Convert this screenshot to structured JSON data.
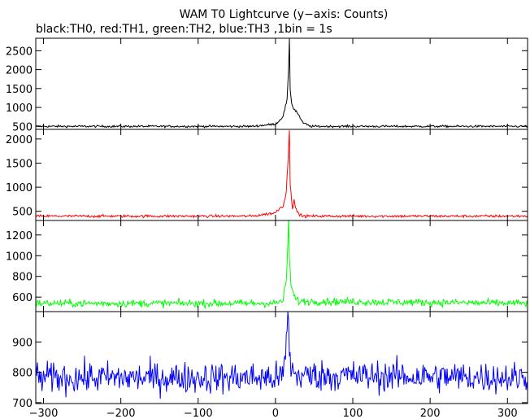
{
  "chart_data": {
    "type": "line",
    "title": "WAM T0 Lightcurve (y−axis: Counts)",
    "subtitle": "black:TH0, red:TH1, green:TH2, blue:TH3 ,1bin = 1s",
    "xlabel": "",
    "ylabel": "",
    "grid": false,
    "bin_seconds": 1,
    "xlim": [
      -310,
      326
    ],
    "x_ticks": [
      -300,
      -200,
      -100,
      0,
      100,
      200,
      300
    ],
    "x_tick_labels": [
      "−300",
      "−200",
      "−100",
      "0",
      "100",
      "200",
      "300"
    ],
    "panels": [
      {
        "series_name": "TH0",
        "color": "#000000",
        "ylim": [
          420,
          2830
        ],
        "y_ticks": [
          500,
          1000,
          1500,
          2000,
          2500
        ],
        "y_tick_labels": [
          "500",
          "1000",
          "1500",
          "2000",
          "2500"
        ],
        "profile": {
          "baseline": 500,
          "noise": 14,
          "x": [
            -310,
            -30,
            0,
            5,
            10,
            15,
            17,
            18,
            19,
            21,
            24,
            27,
            30,
            35,
            45,
            326
          ],
          "y": [
            500,
            500,
            560,
            650,
            780,
            1200,
            2000,
            2800,
            1500,
            1100,
            950,
            900,
            800,
            600,
            500,
            500
          ]
        }
      },
      {
        "series_name": "TH1",
        "color": "#ff0000",
        "ylim": [
          310,
          2200
        ],
        "y_ticks": [
          500,
          1000,
          1500,
          2000
        ],
        "y_tick_labels": [
          "500",
          "1000",
          "1500",
          "2000"
        ],
        "profile": {
          "baseline": 400,
          "noise": 14,
          "x": [
            -310,
            -30,
            0,
            5,
            10,
            14,
            17,
            18,
            19,
            22,
            24,
            26,
            30,
            35,
            326
          ],
          "y": [
            400,
            400,
            470,
            560,
            620,
            900,
            1800,
            2200,
            1100,
            560,
            750,
            550,
            450,
            400,
            400
          ]
        }
      },
      {
        "series_name": "TH2",
        "color": "#00ff00",
        "ylim": [
          460,
          1340
        ],
        "y_ticks": [
          600,
          800,
          1000,
          1200
        ],
        "y_tick_labels": [
          "600",
          "800",
          "1000",
          "1200"
        ],
        "profile": {
          "baseline": 540,
          "noise": 18,
          "x": [
            -310,
            0,
            10,
            14,
            16,
            17,
            18,
            20,
            24,
            30,
            326
          ],
          "y": [
            540,
            540,
            570,
            760,
            1100,
            1330,
            1000,
            720,
            600,
            560,
            540
          ]
        }
      },
      {
        "series_name": "TH3",
        "color": "#0000ff",
        "ylim": [
          697,
          1000
        ],
        "y_ticks": [
          700,
          800,
          900
        ],
        "y_tick_labels": [
          "700",
          "800",
          "900"
        ],
        "profile": {
          "baseline": 782,
          "noise": 26,
          "x": [
            -310,
            8,
            12,
            15,
            16,
            17,
            18,
            20,
            25,
            326
          ],
          "y": [
            782,
            782,
            830,
            920,
            1000,
            960,
            880,
            820,
            790,
            782
          ]
        }
      }
    ]
  }
}
